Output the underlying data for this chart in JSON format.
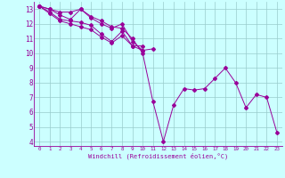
{
  "xlabel": "Windchill (Refroidissement éolien,°C)",
  "background_color": "#ccffff",
  "grid_color": "#99cccc",
  "line_color": "#990099",
  "xmin": -0.5,
  "xmax": 23.5,
  "ymin": 3.7,
  "ymax": 13.5,
  "yticks": [
    4,
    5,
    6,
    7,
    8,
    9,
    10,
    11,
    12,
    13
  ],
  "xticks": [
    0,
    1,
    2,
    3,
    4,
    5,
    6,
    7,
    8,
    9,
    10,
    11,
    12,
    13,
    14,
    15,
    16,
    17,
    18,
    19,
    20,
    21,
    22,
    23
  ],
  "series": [
    [
      0,
      13.2
    ],
    [
      1,
      13.0
    ],
    [
      2,
      12.8
    ],
    [
      3,
      12.8
    ],
    [
      4,
      13.0
    ],
    [
      5,
      12.5
    ],
    [
      6,
      12.2
    ],
    [
      7,
      11.8
    ],
    [
      8,
      11.7
    ],
    [
      9,
      11.0
    ],
    [
      10,
      10.0
    ],
    [
      11,
      6.7
    ],
    [
      12,
      4.0
    ],
    [
      13,
      6.5
    ],
    [
      14,
      7.6
    ],
    [
      15,
      7.5
    ],
    [
      16,
      7.6
    ],
    [
      17,
      8.3
    ],
    [
      18,
      9.0
    ],
    [
      19,
      8.0
    ],
    [
      20,
      6.3
    ],
    [
      21,
      7.2
    ],
    [
      22,
      7.0
    ],
    [
      23,
      4.6
    ]
  ],
  "series2_x": [
    0,
    1,
    2,
    3,
    4,
    5,
    6,
    7,
    8,
    9,
    10,
    11
  ],
  "series2_y": [
    13.2,
    13.0,
    12.6,
    12.3,
    13.0,
    12.4,
    12.0,
    11.7,
    12.0,
    10.8,
    10.2,
    10.3
  ],
  "series3_x": [
    0,
    1,
    2,
    3,
    4,
    5,
    6,
    7,
    8,
    9,
    10
  ],
  "series3_y": [
    13.2,
    12.8,
    12.3,
    12.2,
    12.1,
    11.9,
    11.3,
    10.8,
    11.5,
    10.5,
    10.5
  ],
  "series4_x": [
    0,
    1,
    2,
    3,
    4,
    5,
    6,
    7,
    8,
    9,
    10
  ],
  "series4_y": [
    13.2,
    12.7,
    12.2,
    12.0,
    11.8,
    11.6,
    11.1,
    10.7,
    11.2,
    10.5,
    10.2
  ]
}
